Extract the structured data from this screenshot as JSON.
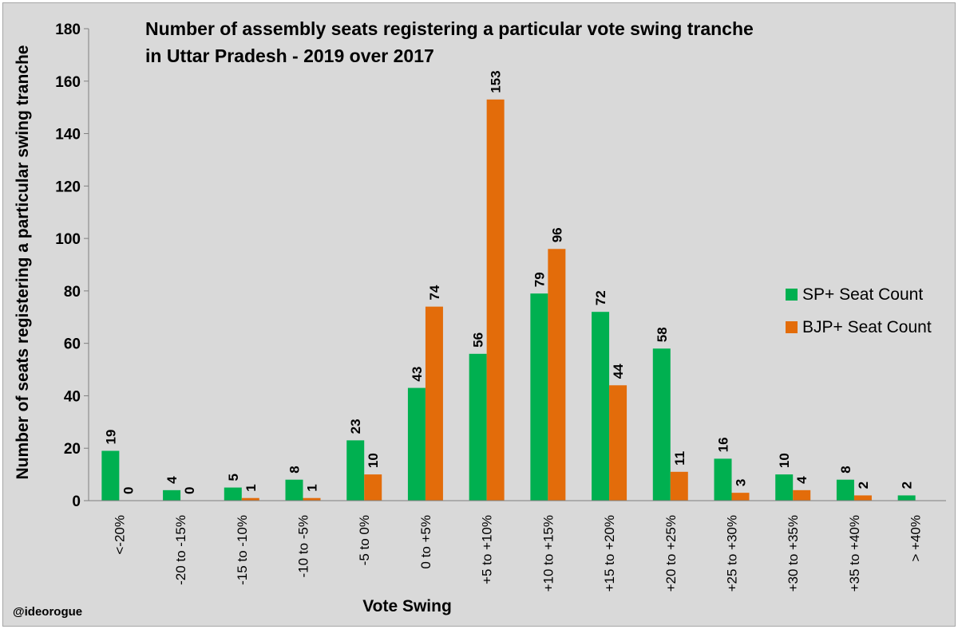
{
  "chart_data": {
    "type": "bar",
    "title_line1": "Number of assembly seats registering a particular vote swing tranche",
    "title_line2": "in Uttar Pradesh - 2019 over 2017",
    "xlabel": "Vote Swing",
    "ylabel": "Number of seats registering a particular swing tranche",
    "ylim": [
      0,
      180
    ],
    "yticks": [
      "0",
      "20",
      "40",
      "60",
      "80",
      "100",
      "120",
      "140",
      "160",
      "180"
    ],
    "categories": [
      "<-20%",
      "-20 to -15%",
      "-15 to -10%",
      "-10 to -5%",
      "-5 to 0%",
      "0 to +5%",
      "+5 to +10%",
      "+10 to +15%",
      "+15 to +20%",
      "+20 to +25%",
      "+25 to +30%",
      "+30 to +35%",
      "+35 to +40%",
      "> +40%"
    ],
    "series": [
      {
        "name": "SP+ Seat Count",
        "color": "#00b050",
        "values": [
          19,
          4,
          5,
          8,
          23,
          43,
          56,
          79,
          72,
          58,
          16,
          10,
          8,
          2
        ]
      },
      {
        "name": "BJP+ Seat Count",
        "color": "#e36c0a",
        "values": [
          0,
          0,
          1,
          1,
          10,
          74,
          153,
          96,
          44,
          11,
          3,
          4,
          2,
          null
        ]
      }
    ],
    "legend_position": "right",
    "grid": false
  },
  "credit": "@ideorogue"
}
